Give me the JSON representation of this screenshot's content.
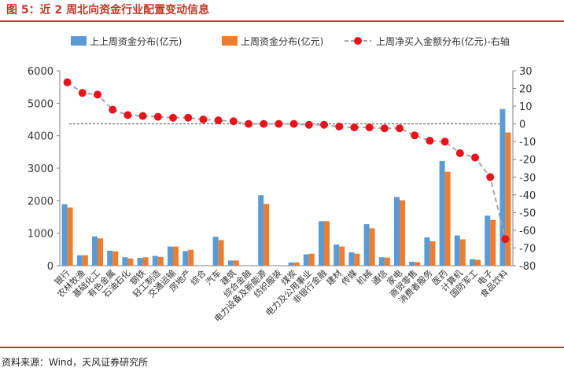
{
  "figure_title": "图 5：近 2 周北向资金行业配置变动信息",
  "source_note": "资料来源：Wind，天风证券研究所",
  "colors": {
    "prev_week": "#5b9bd5",
    "last_week": "#ed7d31",
    "net_buy": "#e8141b",
    "net_line": "#a6a6a6",
    "accent": "#c0392b"
  },
  "chart_data": {
    "type": "bar",
    "categories": [
      "银行",
      "农林牧渔",
      "基础化工",
      "有色金属",
      "石油石化",
      "钢铁",
      "轻工制造",
      "交通运输",
      "房地产",
      "综合",
      "汽车",
      "建筑",
      "综合金融",
      "电力设备及新能源",
      "纺织服装",
      "煤炭",
      "电力及公用事业",
      "非银行金融",
      "建材",
      "传媒",
      "机械",
      "通信",
      "家电",
      "商贸零售",
      "消费者服务",
      "医药",
      "计算机",
      "国防军工",
      "电子",
      "食品饮料"
    ],
    "series": [
      {
        "name": "上上周资金分布(亿元)",
        "type": "bar",
        "axis": "left",
        "values": [
          1890,
          320,
          900,
          460,
          260,
          240,
          300,
          590,
          450,
          0,
          890,
          160,
          0,
          2170,
          0,
          100,
          350,
          1370,
          650,
          410,
          1280,
          260,
          2110,
          120,
          870,
          3220,
          930,
          200,
          1540,
          4820
        ]
      },
      {
        "name": "上周资金分布(亿元)",
        "type": "bar",
        "axis": "left",
        "values": [
          1790,
          320,
          840,
          440,
          220,
          260,
          270,
          590,
          490,
          0,
          790,
          160,
          0,
          1900,
          0,
          100,
          370,
          1370,
          590,
          370,
          1150,
          250,
          2010,
          110,
          750,
          2890,
          810,
          180,
          1410,
          4100
        ]
      },
      {
        "name": "上周净买入金额分布(亿元)-右轴",
        "type": "line",
        "axis": "right",
        "values": [
          23.5,
          17.5,
          16.5,
          8.0,
          5.0,
          4.5,
          4.0,
          3.5,
          3.5,
          2.5,
          2.0,
          1.5,
          0.0,
          0.0,
          0.0,
          0.0,
          -0.5,
          -0.5,
          -1.5,
          -2.0,
          -2.0,
          -2.5,
          -2.5,
          -6.5,
          -9.5,
          -10.0,
          -16.5,
          -19.0,
          -30.0,
          -65.0
        ]
      }
    ],
    "y_left": {
      "min": 0,
      "max": 6000,
      "ticks": [
        0,
        1000,
        2000,
        3000,
        4000,
        5000,
        6000
      ]
    },
    "y_right": {
      "min": -80,
      "max": 30,
      "ticks": [
        30,
        20,
        10,
        0,
        -10,
        -20,
        -30,
        -40,
        -50,
        -60,
        -70,
        -80
      ]
    },
    "legend_position": "top",
    "zero_reference_line": "dashed"
  }
}
